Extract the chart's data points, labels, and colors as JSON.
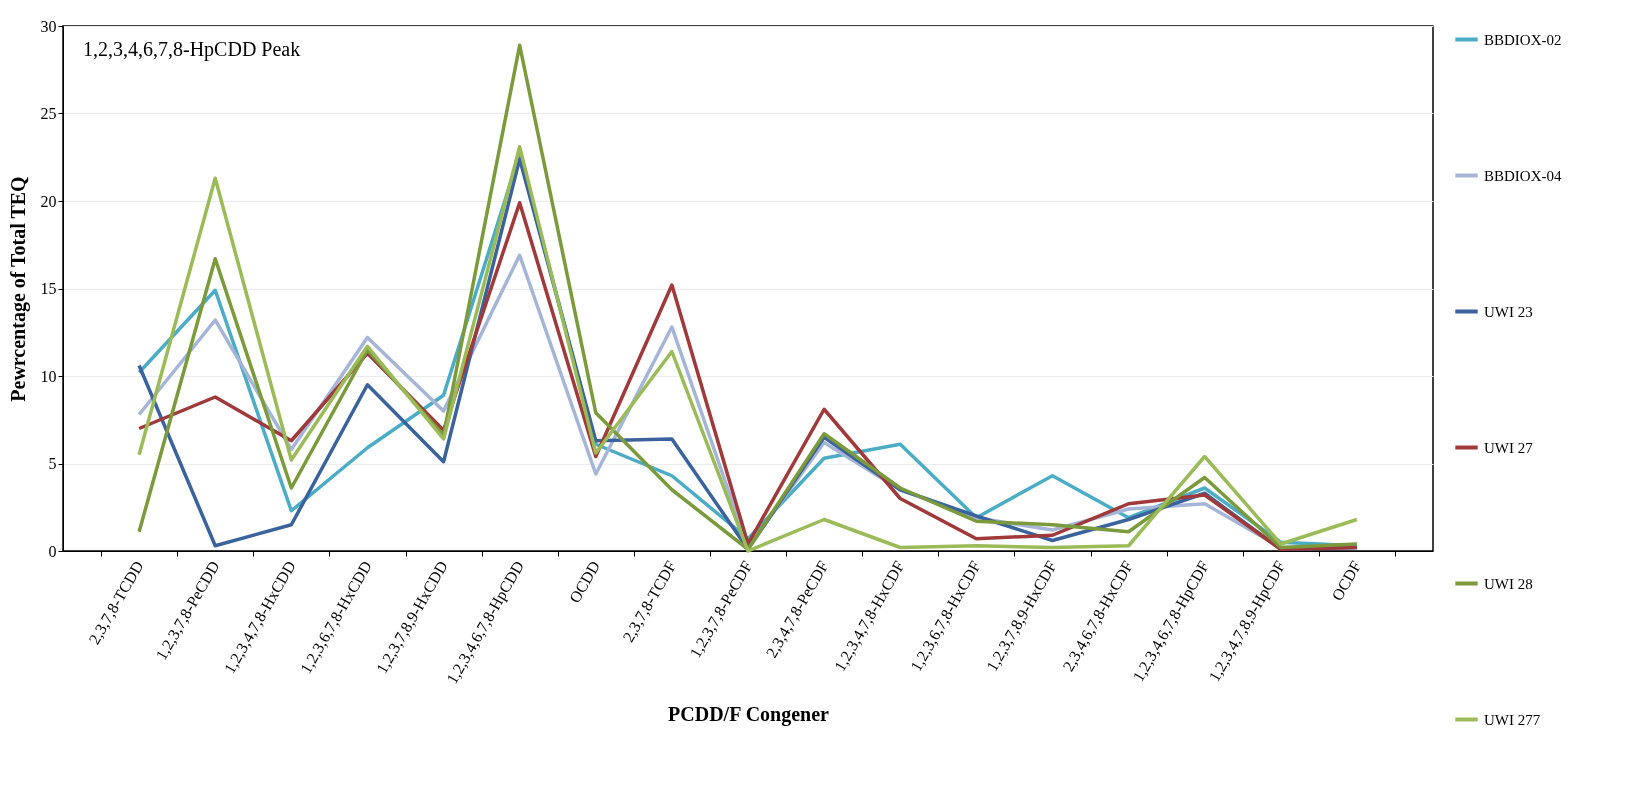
{
  "chart_data": {
    "type": "line",
    "xlabel": "PCDD/F Congener",
    "ylabel": "Pewrcentage of Total TEQ",
    "annotations": [
      "1,2,3,4,6,7,8-HpCDD Peak"
    ],
    "categories": [
      "2,3,7,8-TCDD",
      "1,2,3,7,8-PeCDD",
      "1,2,3,4,7,8-HxCDD",
      "1,2,3,6,7,8-HxCDD",
      "1,2,3,7,8,9-HxCDD",
      "1,2,3,4,6,7,8-HpCDD",
      "OCDD",
      "2,3,7,8-TCDF",
      "1,2,3,7,8-PeCDF",
      "2,3,4,7,8-PeCDF",
      "1,2,3,4,7,8-HxCDF",
      "1,2,3,6,7,8-HxCDF",
      "1,2,3,7,8,9-HxCDF",
      "2,3,4,6,7,8-HxCDF",
      "1,2,3,4,6,7,8-HpCDF",
      "1,2,3,4,7,8,9-HpCDF",
      "OCDF"
    ],
    "series": [
      {
        "name": "BBDIOX-02",
        "color": "#4bacc6",
        "values": [
          10.2,
          14.9,
          2.3,
          5.9,
          8.9,
          22.7,
          6.1,
          4.3,
          0.7,
          5.3,
          6.1,
          1.9,
          4.3,
          1.9,
          3.6,
          0.5,
          0.3
        ]
      },
      {
        "name": "BBDIOX-04",
        "color": "#a5b5d7",
        "values": [
          7.8,
          13.2,
          5.8,
          12.2,
          8.0,
          16.9,
          4.4,
          12.8,
          0.2,
          6.2,
          3.5,
          1.9,
          1.2,
          2.4,
          2.7,
          0.2,
          0.2
        ]
      },
      {
        "name": "UWI 23",
        "color": "#3a639d",
        "values": [
          10.6,
          0.3,
          1.5,
          9.5,
          5.1,
          22.4,
          6.3,
          6.4,
          0.1,
          6.5,
          3.5,
          2.0,
          0.6,
          1.8,
          3.3,
          0.1,
          0.2
        ]
      },
      {
        "name": "UWI 27",
        "color": "#a0393a",
        "values": [
          7.0,
          8.8,
          6.3,
          11.3,
          6.9,
          19.9,
          5.4,
          15.2,
          0.4,
          8.1,
          3.0,
          0.7,
          0.9,
          2.7,
          3.2,
          0.1,
          0.2
        ]
      },
      {
        "name": "UWI 28",
        "color": "#7b9a3c",
        "values": [
          1.1,
          16.7,
          3.6,
          11.5,
          6.6,
          28.9,
          7.9,
          3.5,
          0.1,
          6.7,
          3.6,
          1.7,
          1.5,
          1.1,
          4.2,
          0.2,
          0.4
        ]
      },
      {
        "name": "UWI 277",
        "color": "#9bbb59",
        "values": [
          5.5,
          21.3,
          5.2,
          11.7,
          6.4,
          23.1,
          5.6,
          11.4,
          0.0,
          1.8,
          0.2,
          0.3,
          0.2,
          0.3,
          5.4,
          0.4,
          1.8
        ]
      }
    ],
    "ylim": [
      0,
      30
    ],
    "yticks": [
      0,
      5,
      10,
      15,
      20,
      25,
      30
    ],
    "grid": "y",
    "legend": "right",
    "marker": "none",
    "line_style": "solid"
  }
}
